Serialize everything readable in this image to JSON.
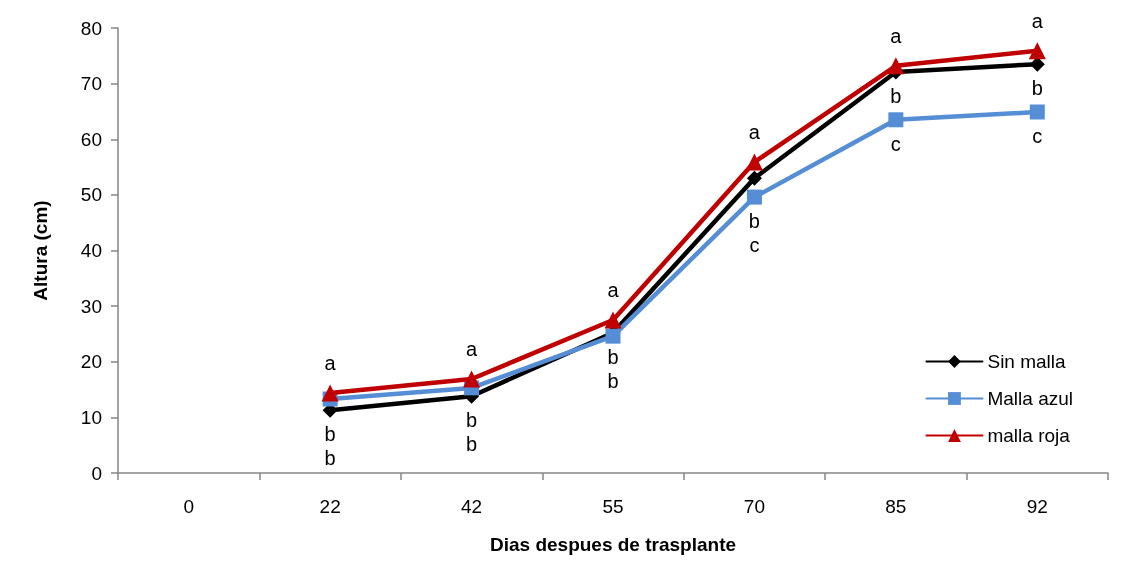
{
  "chart_data": {
    "type": "line",
    "xlabel": "Dias despues de trasplante",
    "ylabel": "Altura (cm)",
    "categories": [
      "0",
      "22",
      "42",
      "55",
      "70",
      "85",
      "92"
    ],
    "series": [
      {
        "name": "Sin malla",
        "color": "#000000",
        "marker": "diamond",
        "values": [
          null,
          11.3,
          13.8,
          25.2,
          53,
          72.1,
          73.5
        ],
        "value_labels": [
          null,
          "b",
          "b",
          "b",
          "b",
          "b",
          "b"
        ]
      },
      {
        "name": "Malla azul",
        "color": "#558ed5",
        "marker": "square",
        "values": [
          null,
          13.3,
          15.3,
          24.6,
          49.6,
          63.5,
          64.9
        ],
        "value_labels": [
          null,
          "b",
          "b",
          "b",
          "c",
          "c",
          "c"
        ]
      },
      {
        "name": "malla roja",
        "color": "#c00000",
        "marker": "triangle",
        "values": [
          null,
          14.4,
          16.9,
          27.5,
          55.9,
          73.2,
          75.9
        ],
        "value_labels": [
          null,
          "a",
          "a",
          "a",
          "a",
          "a",
          "a"
        ]
      }
    ],
    "ylim": [
      0,
      80
    ],
    "yticks": [
      0,
      10,
      20,
      30,
      40,
      50,
      60,
      70,
      80
    ],
    "grid": false,
    "legend": "bottom right",
    "line_style": "solid"
  }
}
